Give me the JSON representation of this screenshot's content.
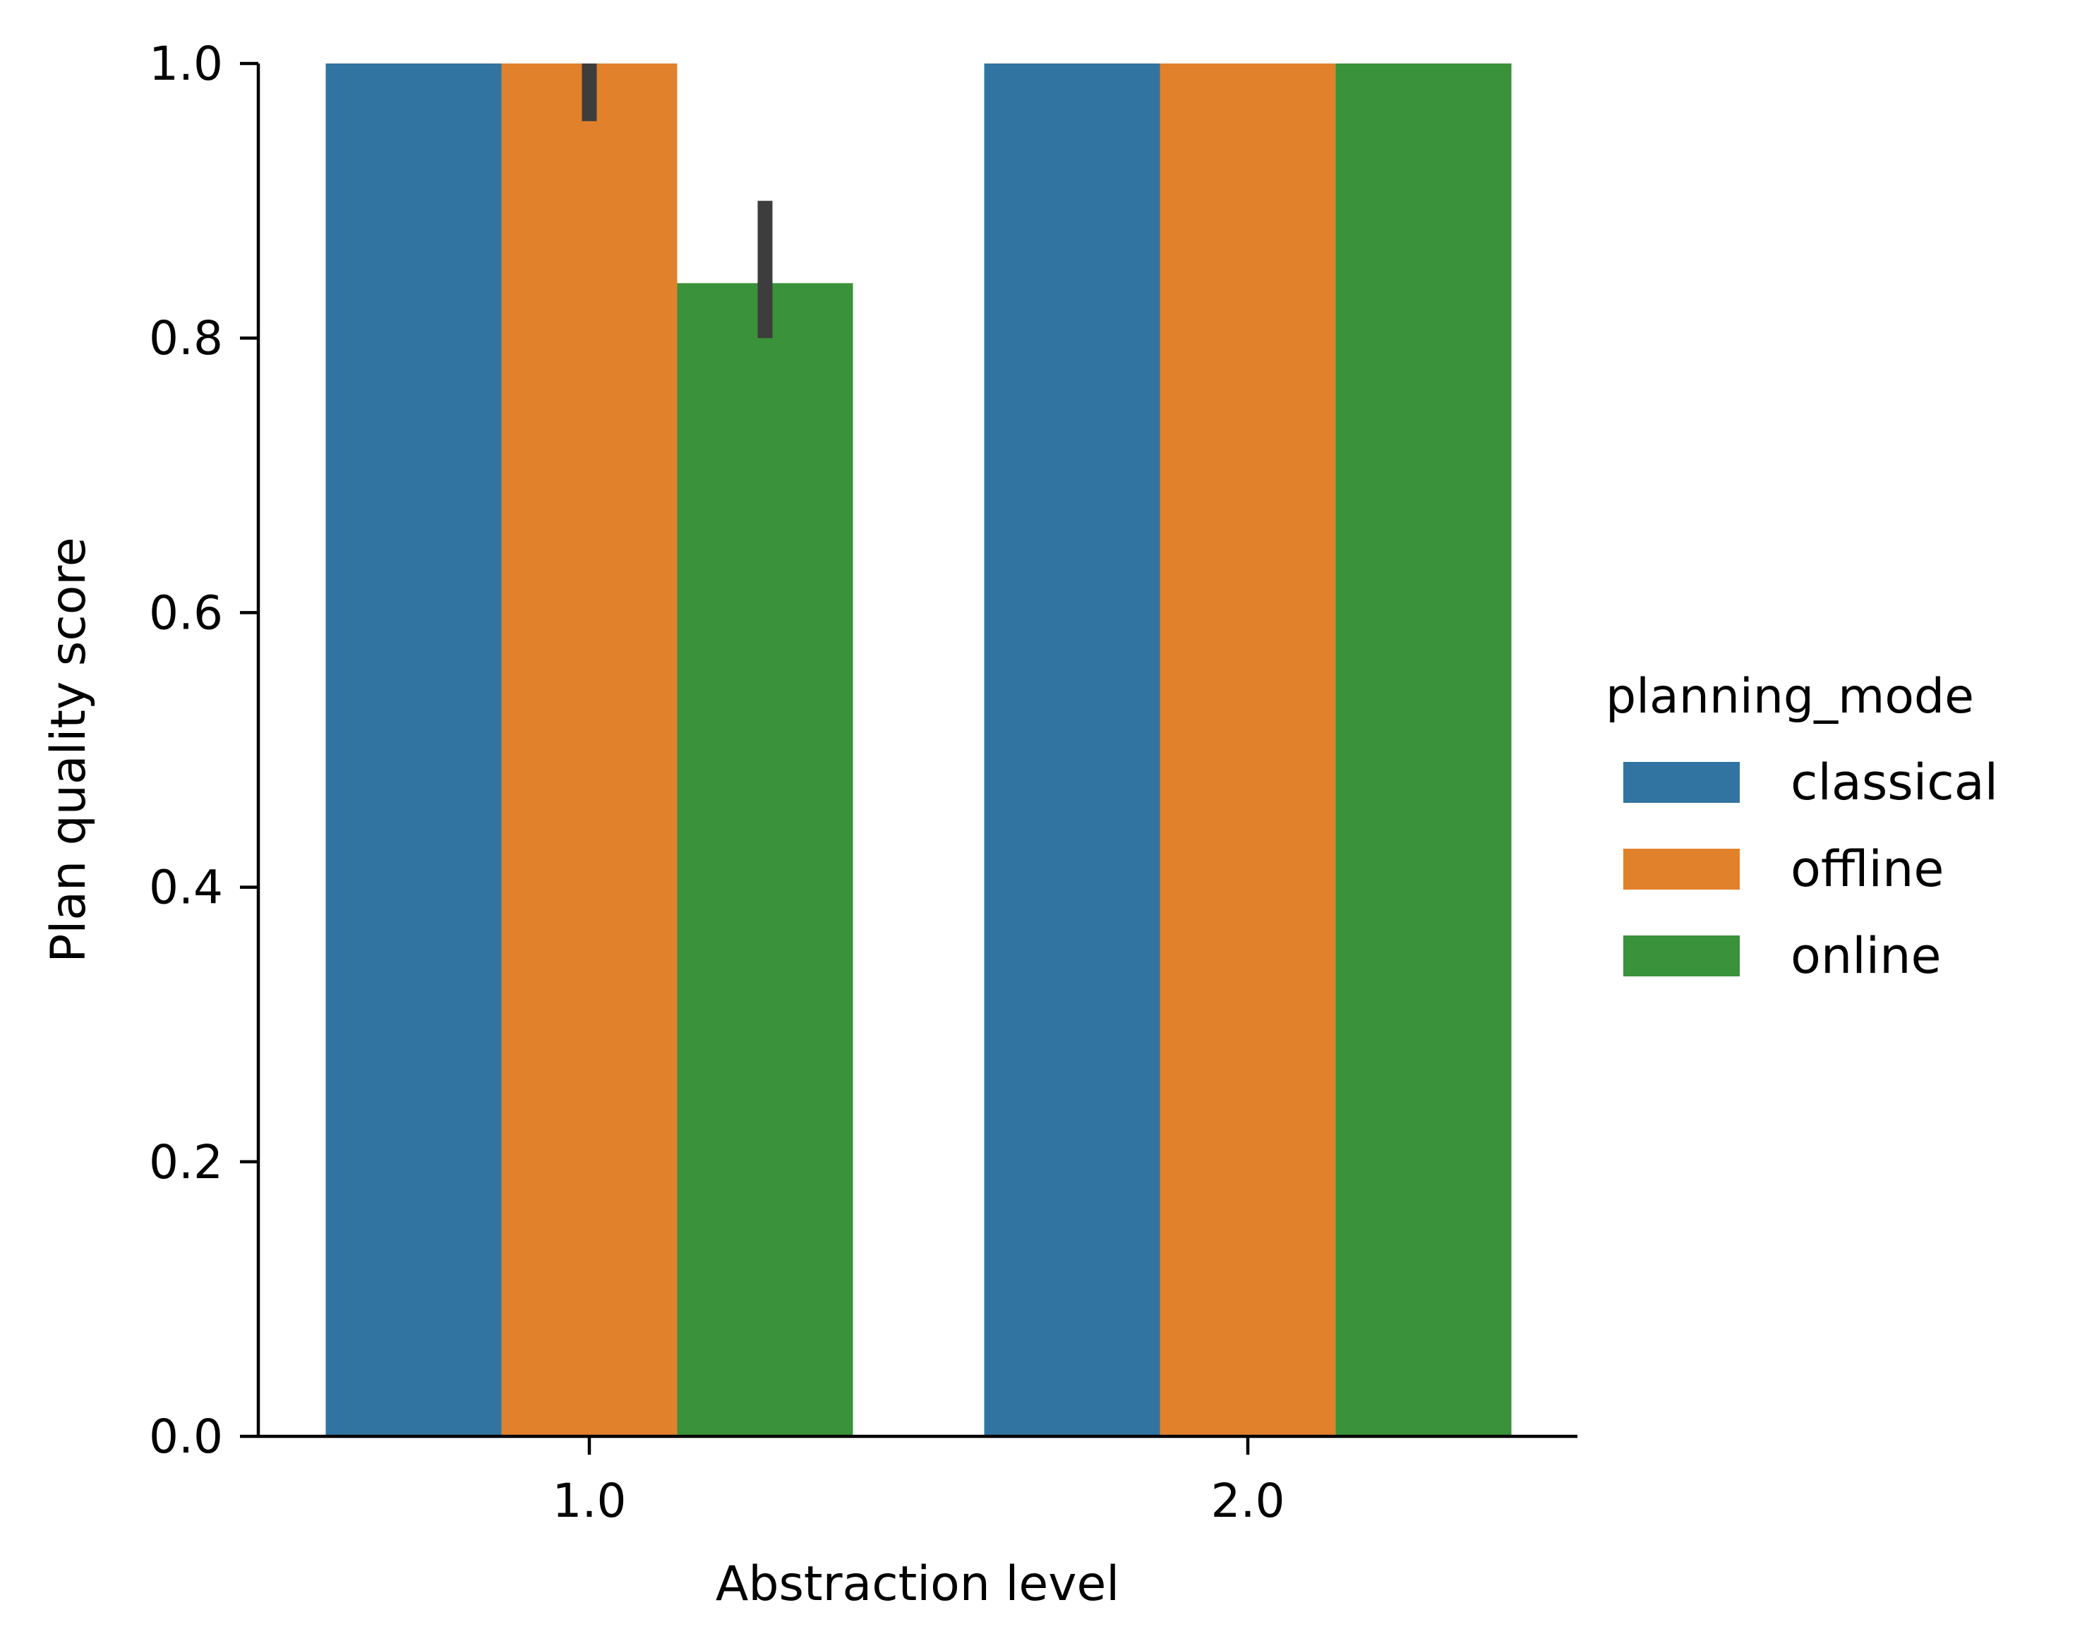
{
  "chart_data": {
    "type": "bar",
    "xlabel": "Abstraction level",
    "ylabel": "Plan quality score",
    "categories": [
      "1.0",
      "2.0"
    ],
    "ylim": [
      0,
      1
    ],
    "yticks": [
      "0.0",
      "0.2",
      "0.4",
      "0.6",
      "0.8",
      "1.0"
    ],
    "legend": {
      "title": "planning_mode",
      "placement": "center-right, outside plot"
    },
    "grid": false,
    "series": [
      {
        "name": "classical",
        "color": "#3274a1",
        "values": [
          1.0,
          1.0
        ],
        "error_low": [
          null,
          null
        ],
        "error_high": [
          null,
          null
        ]
      },
      {
        "name": "offline",
        "color": "#e1812c",
        "values": [
          1.0,
          1.0
        ],
        "error_low": [
          0.958,
          null
        ],
        "error_high": [
          1.0,
          null
        ]
      },
      {
        "name": "online",
        "color": "#3a923a",
        "values": [
          0.84,
          1.0
        ],
        "error_low": [
          0.8,
          null
        ],
        "error_high": [
          0.9,
          null
        ]
      }
    ]
  }
}
